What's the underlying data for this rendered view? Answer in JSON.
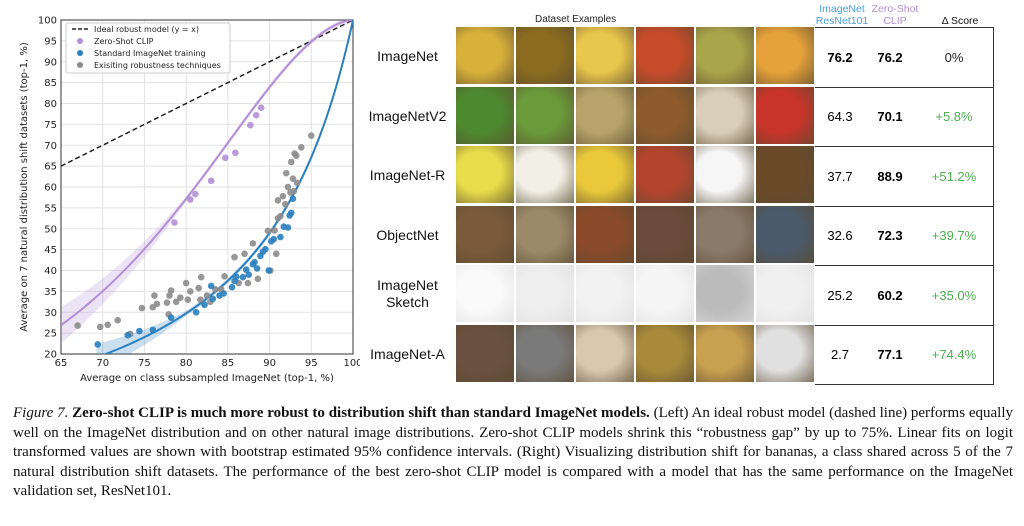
{
  "chart_data": {
    "type": "scatter",
    "xlabel": "Average on class subsampled ImageNet (top-1, %)",
    "ylabel": "Average on 7 natural distribution shift datasets (top-1, %)",
    "xlim": [
      65,
      100
    ],
    "ylim": [
      20,
      100
    ],
    "xticks": [
      65,
      70,
      75,
      80,
      85,
      90,
      95,
      100
    ],
    "yticks": [
      20,
      25,
      30,
      35,
      40,
      45,
      50,
      55,
      60,
      65,
      70,
      75,
      80,
      85,
      90,
      95,
      100
    ],
    "grid": true,
    "legend_placement": "top-left",
    "legend": [
      "Ideal robust model (y = x)",
      "Zero-Shot CLIP",
      "Standard ImageNet training",
      "Exisiting robustness techniques"
    ],
    "colors": {
      "ideal": "#222222",
      "clip": "#b48fd6",
      "standard": "#2a7fbf",
      "existing": "#8c8c8c"
    },
    "series": [
      {
        "name": "Zero-Shot CLIP",
        "points": [
          [
            78.6,
            51.5
          ],
          [
            80.5,
            57
          ],
          [
            81.1,
            58.3
          ],
          [
            83,
            61.5
          ],
          [
            84.7,
            67
          ],
          [
            85.9,
            68.2
          ],
          [
            87.7,
            74.8
          ],
          [
            88.4,
            77.2
          ],
          [
            89,
            79
          ]
        ]
      },
      {
        "name": "Standard ImageNet training",
        "points": [
          [
            69.4,
            22.3
          ],
          [
            73,
            24.5
          ],
          [
            74.4,
            25.5
          ],
          [
            76,
            25.8
          ],
          [
            78.2,
            28.7
          ],
          [
            81.2,
            30
          ],
          [
            82.2,
            31.8
          ],
          [
            83,
            36.3
          ],
          [
            83.2,
            33.2
          ],
          [
            84,
            34
          ],
          [
            84.5,
            34.5
          ],
          [
            85.5,
            36
          ],
          [
            85.8,
            37.5
          ],
          [
            86,
            38.5
          ],
          [
            86.8,
            38.4
          ],
          [
            87.2,
            40.2
          ],
          [
            87.5,
            39
          ],
          [
            88,
            41.5
          ],
          [
            88.2,
            42
          ],
          [
            88.5,
            40.5
          ],
          [
            88.9,
            43.5
          ],
          [
            89.2,
            44.5
          ],
          [
            89.5,
            45.1
          ],
          [
            89.9,
            40
          ],
          [
            90.2,
            47
          ],
          [
            90.5,
            47.5
          ],
          [
            91.3,
            48
          ],
          [
            91.7,
            50.5
          ],
          [
            92.2,
            50.3
          ],
          [
            92.4,
            53.2
          ],
          [
            92.6,
            53.8
          ],
          [
            92.8,
            57.2
          ]
        ]
      },
      {
        "name": "Exisiting robustness techniques",
        "points": [
          [
            67,
            26.8
          ],
          [
            69.7,
            26.5
          ],
          [
            70.6,
            27
          ],
          [
            71.8,
            28.1
          ],
          [
            73.3,
            24.8
          ],
          [
            74.7,
            31
          ],
          [
            76,
            31.2
          ],
          [
            76.2,
            34
          ],
          [
            76.5,
            32
          ],
          [
            77.7,
            32.3
          ],
          [
            77.9,
            29.5
          ],
          [
            78,
            34
          ],
          [
            78.2,
            35.2
          ],
          [
            78.8,
            32.5
          ],
          [
            79.3,
            33.5
          ],
          [
            80,
            37
          ],
          [
            80.2,
            33
          ],
          [
            80.5,
            35
          ],
          [
            81.5,
            35.8
          ],
          [
            81.8,
            38.4
          ],
          [
            81.7,
            33
          ],
          [
            82.5,
            34
          ],
          [
            82.9,
            32.5
          ],
          [
            83.5,
            35.5
          ],
          [
            84.2,
            35.5
          ],
          [
            84.6,
            38.6
          ],
          [
            85.8,
            43.2
          ],
          [
            86.3,
            37
          ],
          [
            87,
            44
          ],
          [
            87.4,
            37
          ],
          [
            88,
            46.5
          ],
          [
            88.6,
            38
          ],
          [
            89.8,
            49.5
          ],
          [
            90.1,
            40
          ],
          [
            90.6,
            49.6
          ],
          [
            90.8,
            44
          ],
          [
            91,
            56.8
          ],
          [
            91,
            52.5
          ],
          [
            91.3,
            53
          ],
          [
            91.6,
            57.8
          ],
          [
            91.9,
            55.9
          ],
          [
            92,
            63.3
          ],
          [
            92.2,
            60
          ],
          [
            92.5,
            58.7
          ],
          [
            92.6,
            66
          ],
          [
            92.8,
            62
          ],
          [
            92.9,
            59
          ],
          [
            93,
            68
          ],
          [
            93.2,
            67.5
          ],
          [
            93.3,
            61
          ],
          [
            93.8,
            69.5
          ],
          [
            95,
            72.3
          ]
        ]
      }
    ],
    "fits": {
      "clip": {
        "slope": 1.68,
        "intercept": -2.04
      },
      "standard": {
        "slope": 1.01,
        "intercept": -2.26
      }
    }
  },
  "right_panel": {
    "title": "Dataset Examples",
    "headers": {
      "resnet": "ImageNet\nResNet101",
      "clip": "Zero-Shot\nCLIP",
      "delta": "Δ Score"
    },
    "header_colors": {
      "resnet": "#4a9fe0",
      "clip": "#b48fd6"
    },
    "rows": [
      {
        "label": "ImageNet",
        "resnet": "76.2",
        "clip": "76.2",
        "delta": "0%",
        "resnet_bold": true
      },
      {
        "label": "ImageNetV2",
        "resnet": "64.3",
        "clip": "70.1",
        "delta": "+5.8%"
      },
      {
        "label": "ImageNet-R",
        "resnet": "37.7",
        "clip": "88.9",
        "delta": "+51.2%"
      },
      {
        "label": "ObjectNet",
        "resnet": "32.6",
        "clip": "72.3",
        "delta": "+39.7%"
      },
      {
        "label": "ImageNet\nSketch",
        "resnet": "25.2",
        "clip": "60.2",
        "delta": "+35.0%"
      },
      {
        "label": "ImageNet-A",
        "resnet": "2.7",
        "clip": "77.1",
        "delta": "+74.4%"
      }
    ]
  },
  "caption": {
    "fig": "Figure 7.",
    "bold": "Zero-shot CLIP is much more robust to distribution shift than standard ImageNet models.",
    "text": " (Left) An ideal robust model (dashed line) performs equally well on the ImageNet distribution and on other natural image distributions. Zero-shot CLIP models shrink this “robustness gap” by up to 75%. Linear fits on logit transformed values are shown with bootstrap estimated 95% confidence intervals. (Right) Visualizing distribution shift for bananas, a class shared across 5 of the 7 natural distribution shift datasets. The performance of the best zero-shot CLIP model is compared with a model that has the same performance on the ImageNet validation set, ResNet101."
  }
}
